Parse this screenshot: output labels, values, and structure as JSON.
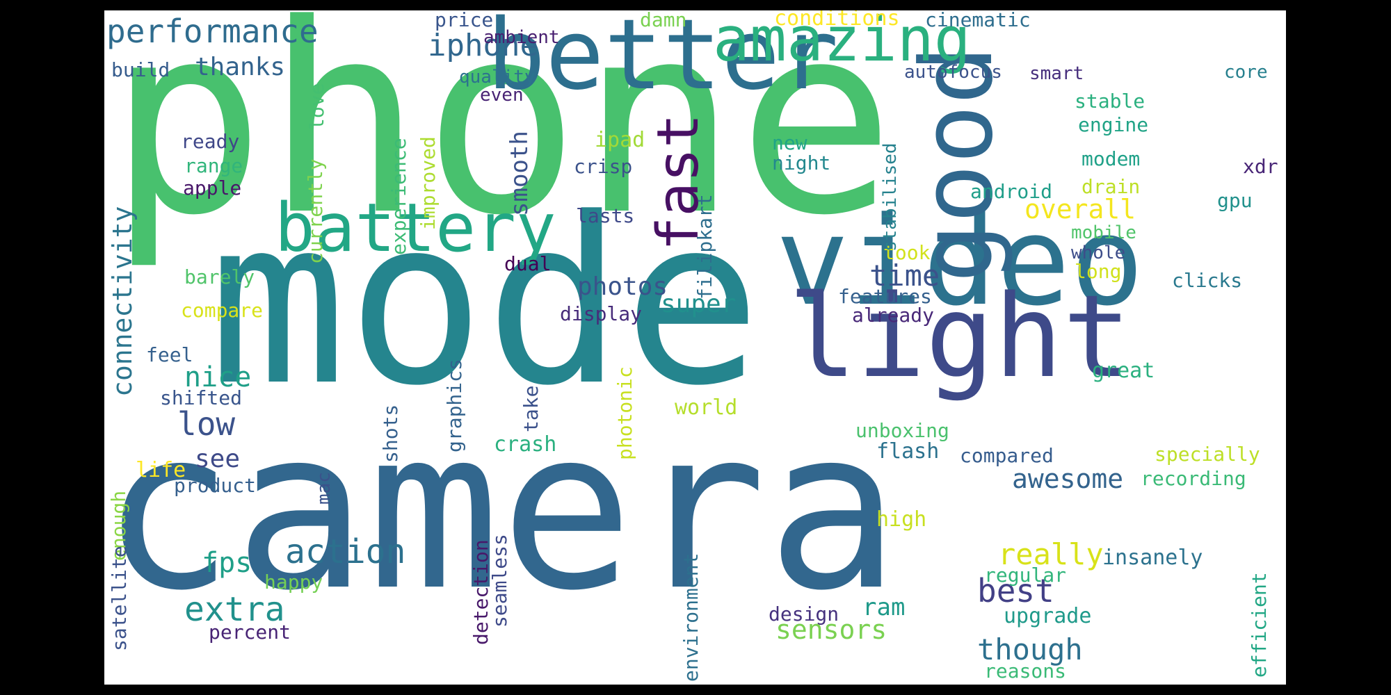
{
  "words": {
    "phone": "phone",
    "mode": "mode",
    "camera": "camera",
    "better": "better",
    "video": "video",
    "good": "good",
    "light": "light",
    "battery": "battery",
    "amazing": "amazing",
    "fast": "fast",
    "performance": "performance",
    "iphone": "iphone",
    "thanks": "thanks",
    "build": "build",
    "price": "price",
    "ambient": "ambient",
    "quality": "quality",
    "even": "even",
    "damn": "damn",
    "conditions": "conditions",
    "cinematic": "cinematic",
    "autofocus": "autofocus",
    "smart": "smart",
    "core": "core",
    "stable": "stable",
    "engine": "engine",
    "modem": "modem",
    "xdr": "xdr",
    "drain": "drain",
    "android": "android",
    "gpu": "gpu",
    "overall": "overall",
    "mobile": "mobile",
    "whole": "whole",
    "long": "long",
    "clicks": "clicks",
    "took": "took",
    "stabilised": "stabilised",
    "new": "new",
    "night": "night",
    "ipad": "ipad",
    "crisp": "crisp",
    "lasts": "lasts",
    "smooth": "smooth",
    "ready": "ready",
    "range": "range",
    "apple": "apple",
    "love": "love",
    "currently": "currently",
    "experience": "experience",
    "improved": "improved",
    "filipkart": "filipkart",
    "dual": "dual",
    "photos": "photos",
    "super": "super",
    "display": "display",
    "time": "time",
    "features": "features",
    "already": "already",
    "connectivity": "connectivity",
    "barely": "barely",
    "compare": "compare",
    "feel": "feel",
    "nice": "nice",
    "low": "low",
    "shifted": "shifted",
    "see": "see",
    "life": "life",
    "enough": "enough",
    "product": "product",
    "mac": "mac",
    "shots": "shots",
    "graphics": "graphics",
    "take": "take",
    "crash": "crash",
    "photonic": "photonic",
    "world": "world",
    "unboxing": "unboxing",
    "flash": "flash",
    "compared": "compared",
    "great": "great",
    "specially": "specially",
    "awesome": "awesome",
    "recording": "recording",
    "fps": "fps",
    "action": "action",
    "extra": "extra",
    "happy": "happy",
    "satellite": "satellite",
    "percent": "percent",
    "detection": "detection",
    "seamless": "seamless",
    "environment": "environment",
    "design": "design",
    "ram": "ram",
    "sensors": "sensors",
    "best": "best",
    "really": "really",
    "high": "high",
    "insanely": "insanely",
    "regular": "regular",
    "upgrade": "upgrade",
    "though": "though",
    "reasons": "reasons",
    "efficient": "efficient"
  }
}
